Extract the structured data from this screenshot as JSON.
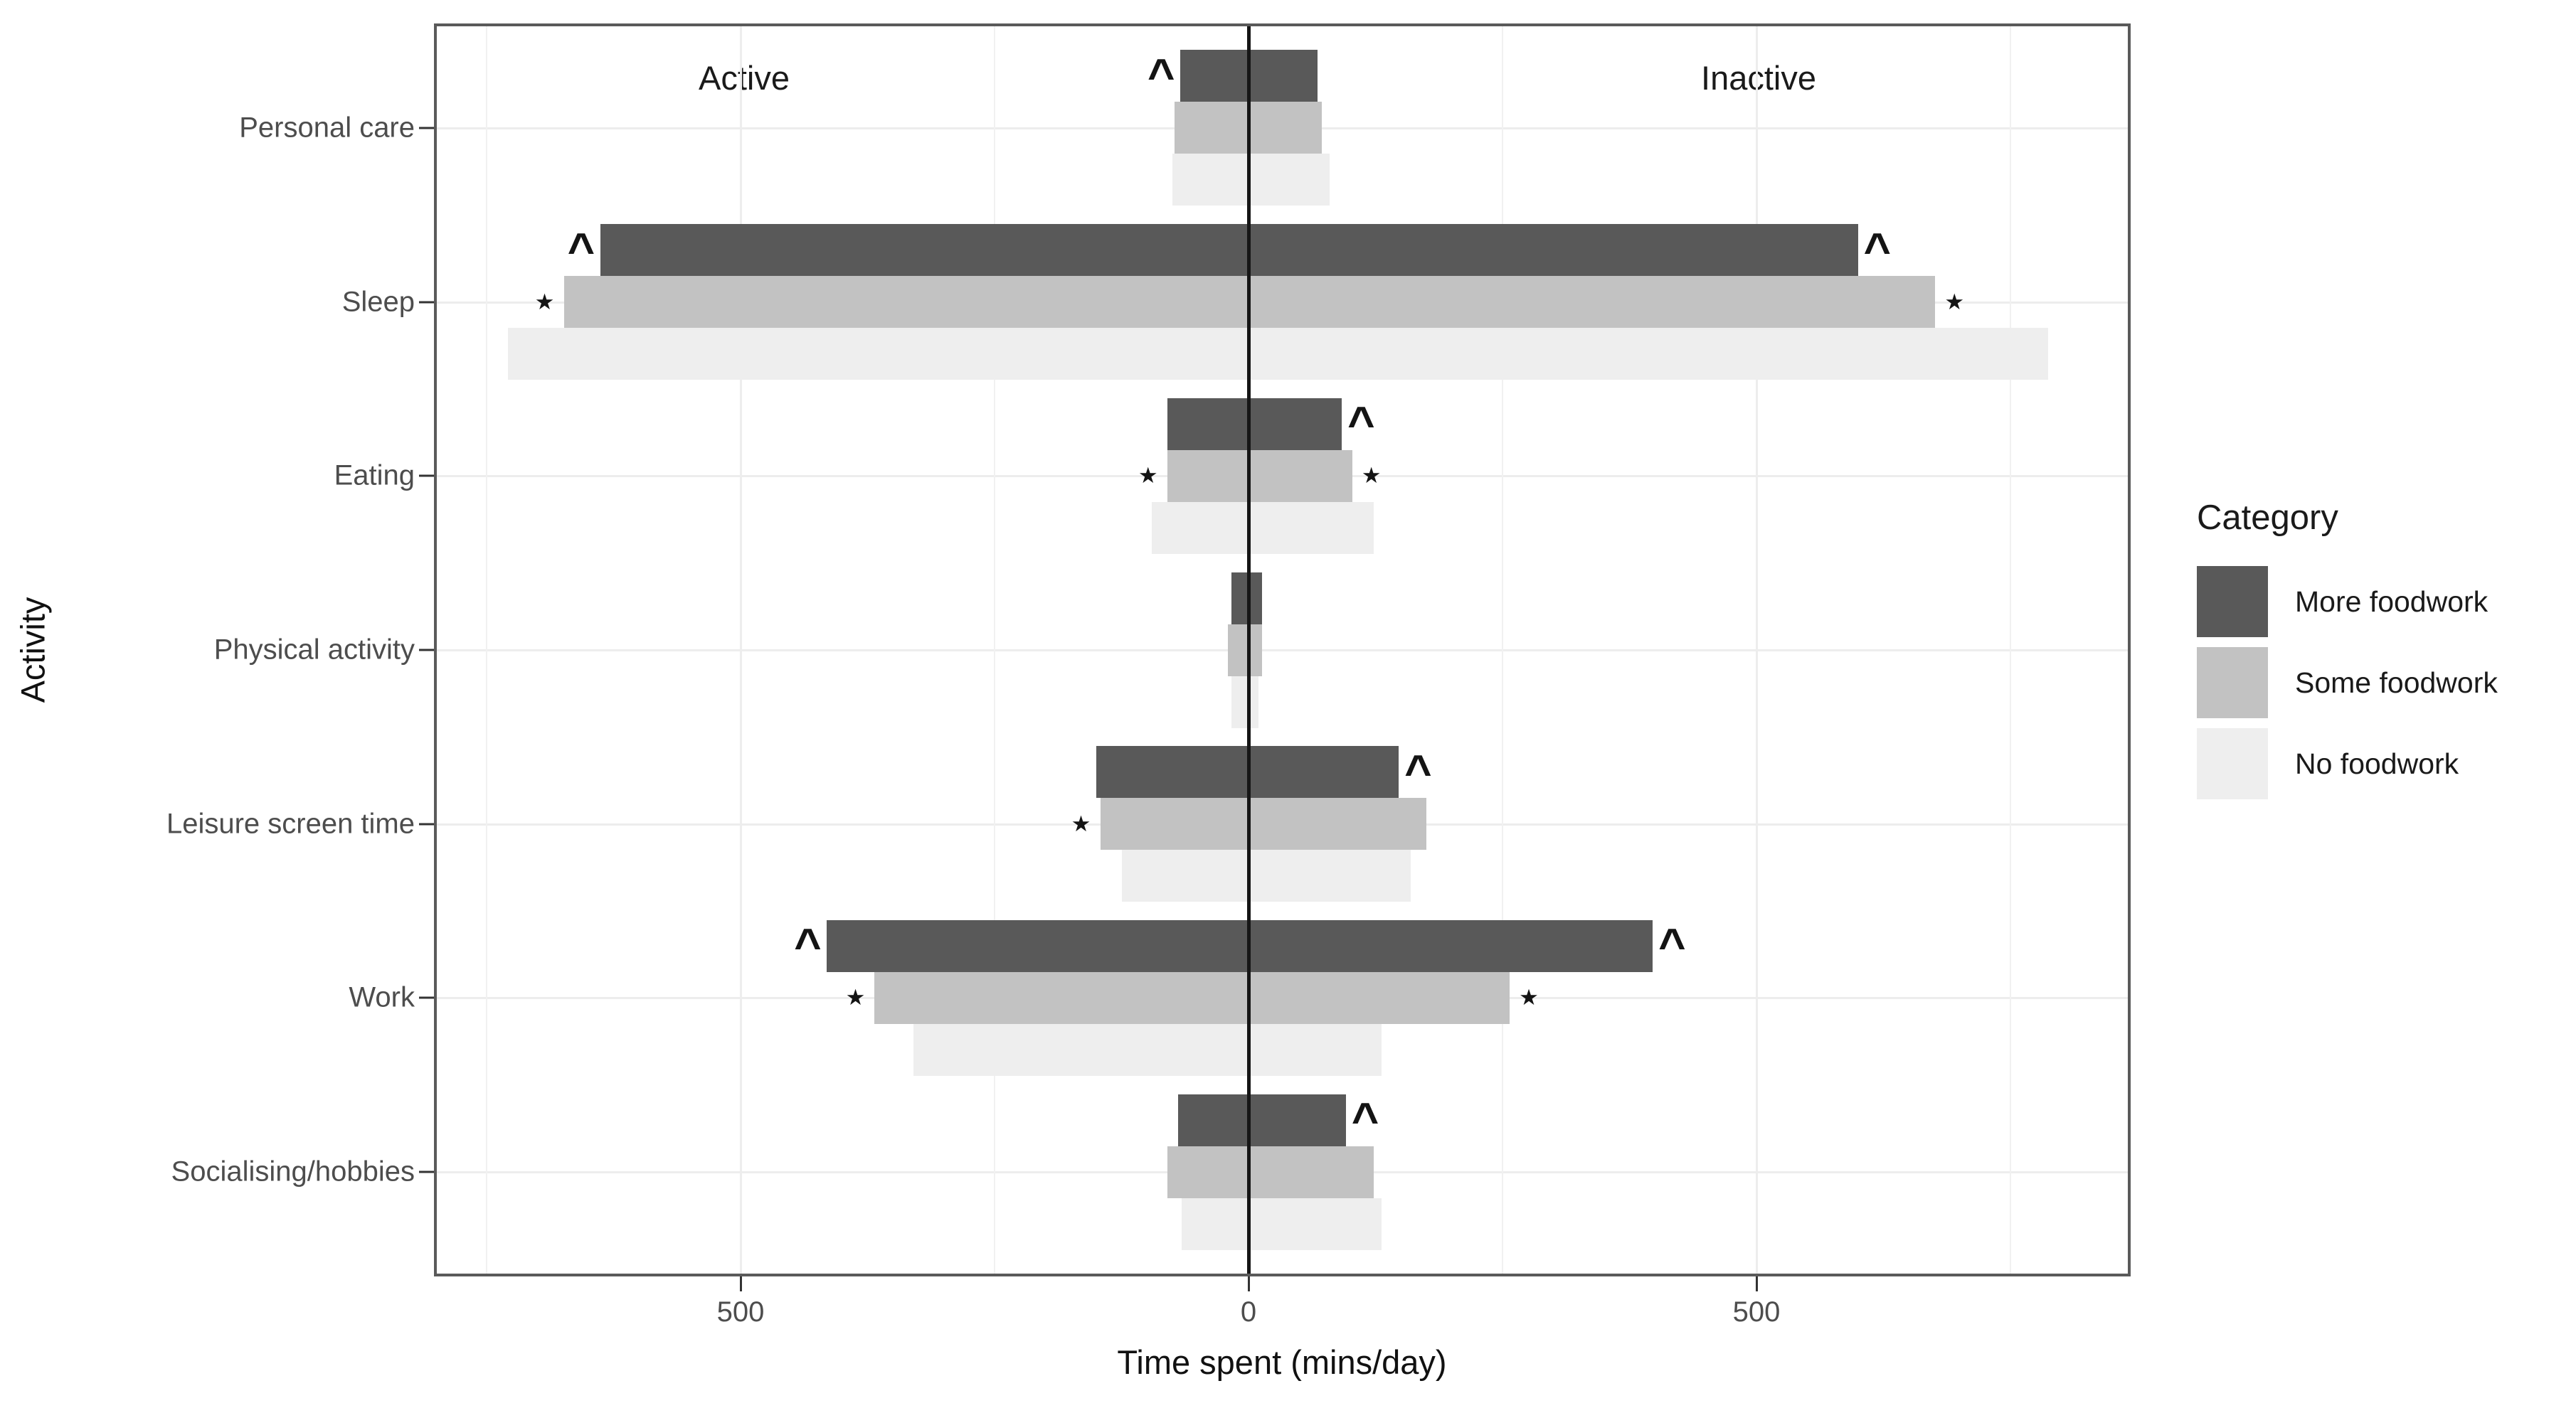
{
  "chart_data": {
    "type": "bar",
    "variant": "diverging-dodged-horizontal",
    "xlabel": "Time spent (mins/day)",
    "ylabel": "Activity",
    "side_labels": {
      "active": "Active",
      "inactive": "Inactive"
    },
    "legend": {
      "title": "Category",
      "position": "right"
    },
    "grid": "on",
    "x_ticks": [
      {
        "value": -500,
        "label": "500"
      },
      {
        "value": 0,
        "label": "0"
      },
      {
        "value": 500,
        "label": "500"
      }
    ],
    "x_minor_gridlines": [
      -750,
      -250,
      250,
      750
    ],
    "x_major_gridlines": [
      -500,
      500
    ],
    "xlim": [
      -802,
      868
    ],
    "units": "mins/day",
    "categories": [
      "Personal care",
      "Sleep",
      "Eating",
      "Physical activity",
      "Leisure screen time",
      "Work",
      "Socialising/hobbies"
    ],
    "series": [
      {
        "name": "More foodwork",
        "color": "#595959",
        "active": [
          67,
          638,
          80,
          17,
          150,
          415,
          69
        ],
        "inactive": [
          68,
          600,
          92,
          13,
          148,
          398,
          96
        ]
      },
      {
        "name": "Some foodwork",
        "color": "#c2c2c2",
        "active": [
          73,
          674,
          80,
          20,
          146,
          368,
          80
        ],
        "inactive": [
          72,
          676,
          102,
          13,
          175,
          257,
          123
        ]
      },
      {
        "name": "No foodwork",
        "color": "#eeeeee",
        "active": [
          75,
          729,
          95,
          17,
          125,
          330,
          66
        ],
        "inactive": [
          80,
          787,
          123,
          10,
          160,
          131,
          131
        ]
      }
    ],
    "markers": [
      {
        "category": "Personal care",
        "series": "More foodwork",
        "side": "active",
        "symbol": "^"
      },
      {
        "category": "Sleep",
        "series": "More foodwork",
        "side": "active",
        "symbol": "^"
      },
      {
        "category": "Sleep",
        "series": "More foodwork",
        "side": "inactive",
        "symbol": "^"
      },
      {
        "category": "Sleep",
        "series": "Some foodwork",
        "side": "active",
        "symbol": "★"
      },
      {
        "category": "Sleep",
        "series": "Some foodwork",
        "side": "inactive",
        "symbol": "★"
      },
      {
        "category": "Eating",
        "series": "More foodwork",
        "side": "inactive",
        "symbol": "^"
      },
      {
        "category": "Eating",
        "series": "Some foodwork",
        "side": "active",
        "symbol": "★"
      },
      {
        "category": "Eating",
        "series": "Some foodwork",
        "side": "inactive",
        "symbol": "★"
      },
      {
        "category": "Leisure screen time",
        "series": "More foodwork",
        "side": "inactive",
        "symbol": "^"
      },
      {
        "category": "Leisure screen time",
        "series": "Some foodwork",
        "side": "active",
        "symbol": "★"
      },
      {
        "category": "Work",
        "series": "More foodwork",
        "side": "active",
        "symbol": "^"
      },
      {
        "category": "Work",
        "series": "More foodwork",
        "side": "inactive",
        "symbol": "^"
      },
      {
        "category": "Work",
        "series": "Some foodwork",
        "side": "active",
        "symbol": "★"
      },
      {
        "category": "Work",
        "series": "Some foodwork",
        "side": "inactive",
        "symbol": "★"
      },
      {
        "category": "Socialising/hobbies",
        "series": "More foodwork",
        "side": "inactive",
        "symbol": "^"
      }
    ],
    "colors": {
      "zero_line": "#161616",
      "panel_border": "#5a5a5a",
      "grid_major": "#ededed",
      "grid_minor": "#f1f1f1",
      "axis_text": "#4d4d4d",
      "title_text": "#111111"
    }
  }
}
